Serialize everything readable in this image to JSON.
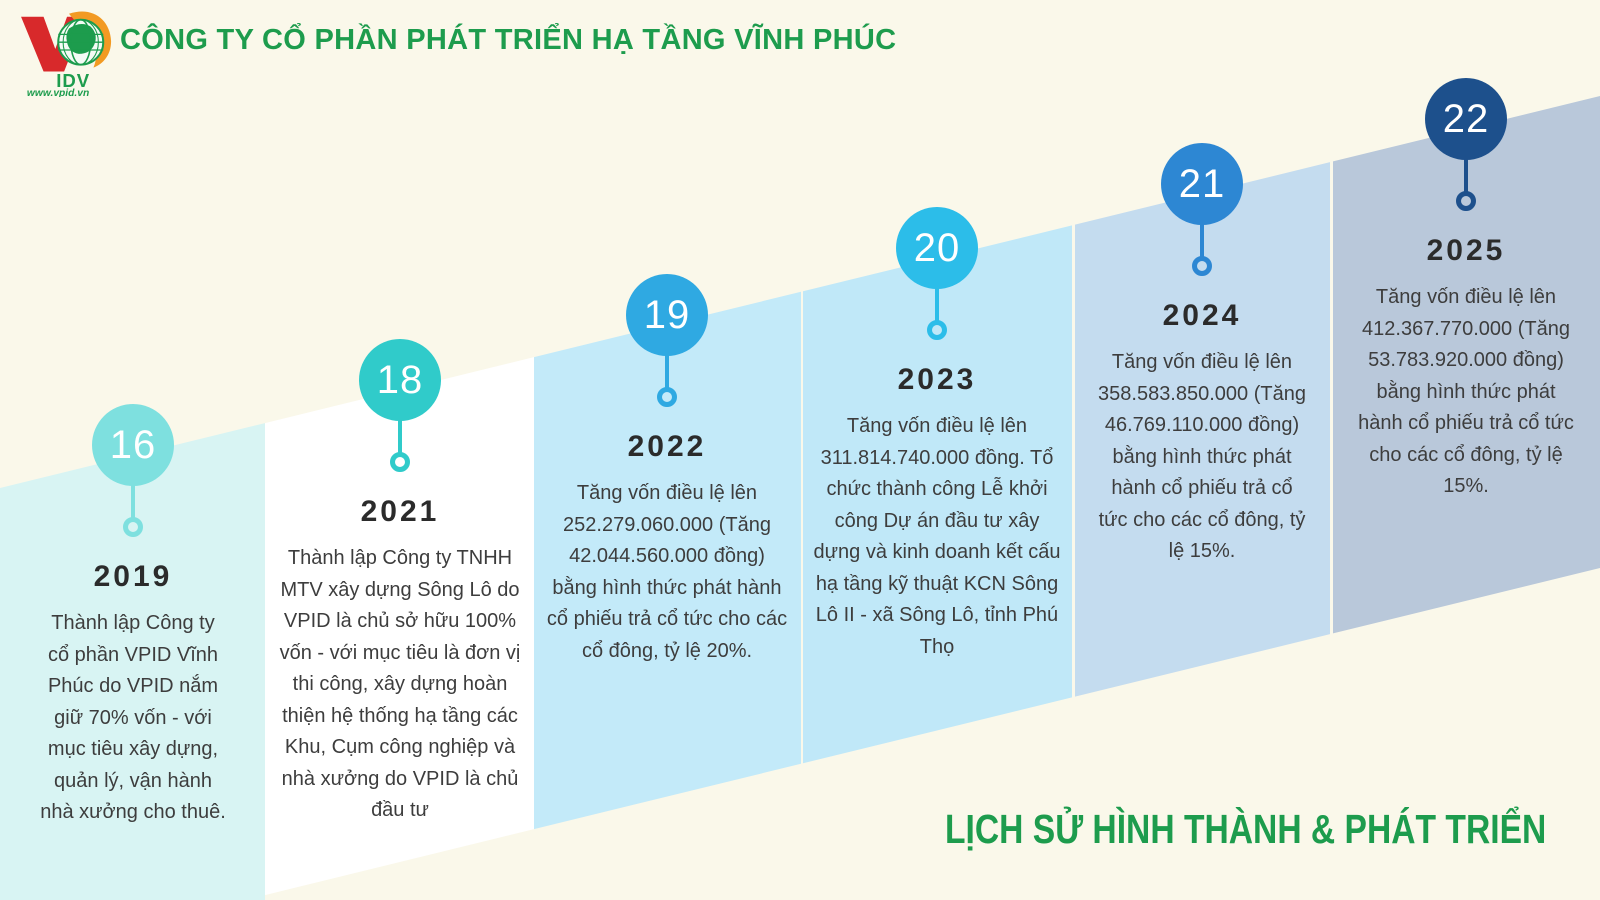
{
  "header": {
    "title": "CÔNG TY CỔ PHẦN PHÁT TRIỂN HẠ TẦNG VĨNH PHÚC"
  },
  "footer": {
    "title": "LỊCH SỬ HÌNH THÀNH & PHÁT TRIỂN"
  },
  "logo": {
    "name": "IDV",
    "website": "www.vpid.vn",
    "colors": {
      "red": "#D8292B",
      "orange": "#F29A23",
      "green": "#1D9C4D"
    }
  },
  "accent": {
    "green": "#1D9C4D",
    "background": "#FAF8EA",
    "year_color": "#2B2B2B",
    "text_color": "#3D3D3D"
  },
  "timeline": {
    "columns": [
      {
        "badge": "16",
        "year": "2019",
        "circle_color": "#7EE0DF",
        "bg_color": "#D8F4F3",
        "lines": [
          "Thành lập Công ty",
          "cổ phần VPID Vĩnh",
          "Phúc do VPID nắm",
          "giữ 70% vốn - với",
          "mục tiêu xây dựng,",
          "quản lý, vận hành",
          "nhà xưởng cho thuê."
        ]
      },
      {
        "badge": "18",
        "year": "2021",
        "circle_color": "#30CBCA",
        "bg_color": "#FFFFFF",
        "lines": [
          "Thành lập Công ty TNHH",
          "MTV xây dựng Sông Lô do",
          "VPID là chủ sở hữu 100%",
          "vốn - với mục tiêu là đơn vị",
          "thi công, xây dựng hoàn",
          "thiện hệ thống hạ tầng các",
          "Khu, Cụm công nghiệp và",
          "nhà xưởng do VPID là chủ",
          "đầu tư"
        ]
      },
      {
        "badge": "19",
        "year": "2022",
        "circle_color": "#2FA9E2",
        "bg_color": "#C3EAF9",
        "lines": [
          "Tăng vốn điều lệ lên",
          "252.279.060.000 (Tăng",
          "42.044.560.000 đồng)",
          "bằng hình thức phát hành",
          "cổ phiếu trả cổ tức cho các",
          "cổ đông, tỷ lệ 20%."
        ]
      },
      {
        "badge": "20",
        "year": "2023",
        "circle_color": "#2CBDE9",
        "bg_color": "#C0E8F8",
        "lines": [
          "Tăng vốn điều lệ lên",
          "311.814.740.000 đồng. Tổ",
          "chức thành công Lễ khởi",
          "công Dự án đầu tư xây",
          "dựng và kinh doanh kết cấu",
          "hạ tầng kỹ thuật KCN Sông",
          "Lô II - xã Sông Lô, tỉnh Phú",
          "Thọ"
        ]
      },
      {
        "badge": "21",
        "year": "2024",
        "circle_color": "#2D87D3",
        "bg_color": "#C4DCEF",
        "lines": [
          "Tăng vốn điều lệ lên",
          "358.583.850.000 (Tăng",
          "46.769.110.000 đồng)",
          "bằng hình thức phát",
          "hành cổ phiếu trả cổ",
          "tức cho các cổ đông, tỷ",
          "lệ 15%."
        ]
      },
      {
        "badge": "22",
        "year": "2025",
        "circle_color": "#1D508C",
        "bg_color": "#B9C8DA",
        "lines": [
          "Tăng vốn điều lệ lên",
          "412.367.770.000 (Tăng",
          "53.783.920.000 đồng)",
          "bằng hình thức phát",
          "hành cổ phiếu trả cổ tức",
          "cho các cổ đông, tỷ lệ",
          "15%."
        ]
      }
    ]
  }
}
